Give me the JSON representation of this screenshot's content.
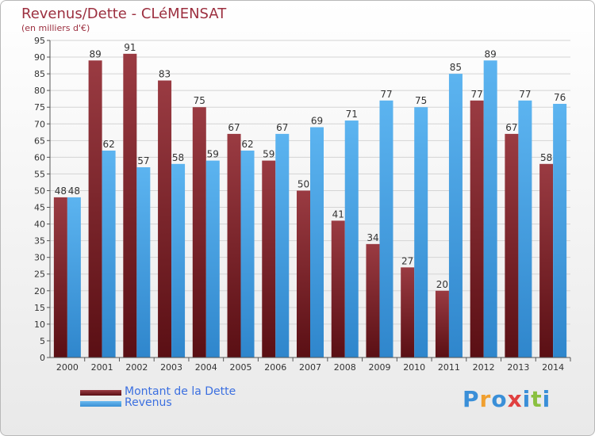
{
  "title": "Revenus/Dette - CLéMENSAT",
  "subtitle": "(en milliers d'€)",
  "colors": {
    "dette": "#7a1e23",
    "revenus": "#4aa3e6",
    "text": "#9c2f3f",
    "legend_text": "#3b6fe0"
  },
  "chart_data": {
    "type": "bar",
    "categories": [
      "2000",
      "2001",
      "2002",
      "2003",
      "2004",
      "2005",
      "2006",
      "2007",
      "2008",
      "2009",
      "2010",
      "2011",
      "2012",
      "2013",
      "2014"
    ],
    "series": [
      {
        "name": "Montant de la Dette",
        "values": [
          48,
          89,
          91,
          83,
          75,
          67,
          59,
          50,
          41,
          34,
          27,
          20,
          77,
          67,
          58
        ]
      },
      {
        "name": "Revenus",
        "values": [
          48,
          62,
          57,
          58,
          59,
          62,
          67,
          69,
          71,
          77,
          75,
          85,
          89,
          77,
          76
        ]
      }
    ],
    "ylim": [
      0,
      95
    ],
    "yticks": [
      0,
      5,
      10,
      15,
      20,
      25,
      30,
      35,
      40,
      45,
      50,
      55,
      60,
      65,
      70,
      75,
      80,
      85,
      90,
      95
    ],
    "grid": true,
    "legend_position": "bottom-left"
  },
  "legend": [
    {
      "label": "Montant de la Dette"
    },
    {
      "label": "Revenus"
    }
  ],
  "logo": {
    "letters": [
      "P",
      "r",
      "o",
      "x",
      "i",
      "t",
      "i"
    ]
  }
}
